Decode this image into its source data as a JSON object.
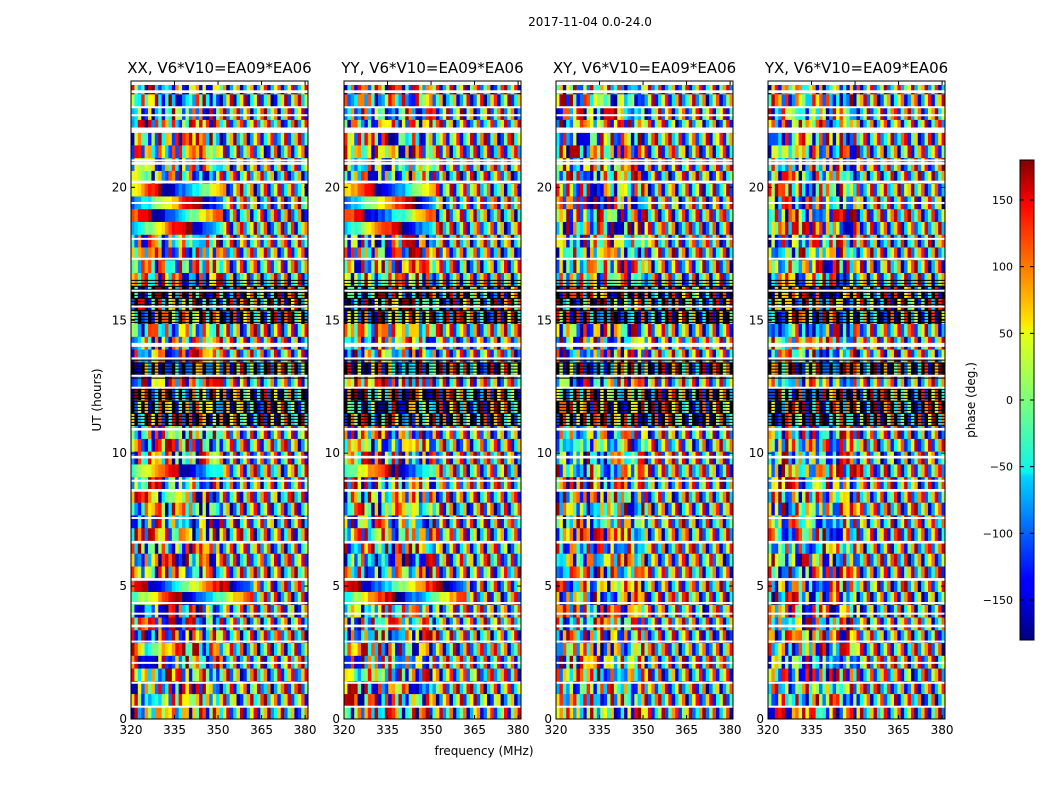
{
  "figure_title": "2017-11-04 0.0-24.0",
  "chart_data": {
    "type": "heatmap",
    "title": "2017-11-04 0.0-24.0",
    "xlabel": "frequency (MHz)",
    "ylabel": "UT (hours)",
    "xlim": [
      320,
      381
    ],
    "ylim": [
      0,
      24
    ],
    "xticks": [
      320,
      335,
      350,
      365,
      380
    ],
    "yticks": [
      0,
      5,
      10,
      15,
      20
    ],
    "panels": [
      {
        "title": "XX, V6*V10=EA09*EA06",
        "correlation": "XX"
      },
      {
        "title": "YY, V6*V10=EA09*EA06",
        "correlation": "YY"
      },
      {
        "title": "XY, V6*V10=EA09*EA06",
        "correlation": "XY"
      },
      {
        "title": "YX, V6*V10=EA09*EA06",
        "correlation": "YX"
      }
    ],
    "colorbar": {
      "label": "phase (deg.)",
      "range": [
        -180,
        180
      ],
      "ticks": [
        150,
        100,
        50,
        0,
        -50,
        -100,
        -150
      ],
      "colormap": "jet"
    },
    "data_gaps_hours": [
      [
        0.45,
        0.5
      ],
      [
        1.35,
        1.4
      ],
      [
        2.1,
        2.15
      ],
      [
        2.9,
        2.95
      ],
      [
        3.45,
        3.55
      ],
      [
        3.95,
        4.0
      ],
      [
        4.35,
        4.4
      ],
      [
        5.2,
        5.3
      ],
      [
        6.6,
        6.7
      ],
      [
        7.55,
        7.6
      ],
      [
        8.55,
        8.65
      ],
      [
        8.95,
        9.0
      ],
      [
        9.8,
        9.9
      ],
      [
        10.85,
        10.95
      ],
      [
        12.45,
        12.5
      ],
      [
        12.9,
        12.95
      ],
      [
        13.55,
        13.6
      ],
      [
        14.0,
        14.15
      ],
      [
        15.5,
        15.55
      ],
      [
        16.1,
        16.15
      ],
      [
        17.3,
        17.35
      ],
      [
        18.05,
        18.1
      ],
      [
        19.4,
        19.45
      ],
      [
        20.15,
        20.25
      ],
      [
        20.85,
        20.95
      ],
      [
        21.0,
        21.05
      ],
      [
        22.05,
        22.25
      ],
      [
        22.7,
        22.75
      ],
      [
        23.0,
        23.05
      ],
      [
        23.55,
        23.65
      ],
      [
        23.85,
        24.0
      ]
    ],
    "dense_bands_hours": [
      [
        10.9,
        12.4
      ],
      [
        12.8,
        13.5
      ],
      [
        14.9,
        16.5
      ]
    ],
    "coherent_features": [
      {
        "panels": [
          "XX",
          "YY"
        ],
        "ut": [
          18.2,
          20.2
        ],
        "freq": [
          320,
          352
        ],
        "note": "broad phase ramp"
      },
      {
        "panels": [
          "XX",
          "YY"
        ],
        "ut": [
          4.2,
          5.2
        ],
        "freq": [
          320,
          362
        ],
        "note": "diagonal fringes"
      },
      {
        "panels": [
          "XX",
          "YY"
        ],
        "ut": [
          9.0,
          9.8
        ],
        "freq": [
          320,
          350
        ],
        "note": "phase wedge"
      }
    ]
  }
}
